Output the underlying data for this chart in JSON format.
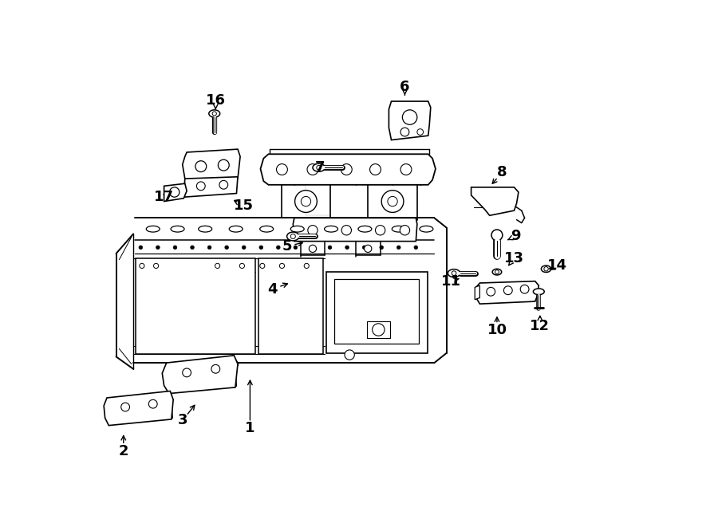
{
  "background_color": "#ffffff",
  "line_color": "#000000",
  "figsize": [
    9.0,
    6.61
  ],
  "dpi": 100,
  "labels": [
    [
      1,
      258,
      595,
      258,
      505
    ],
    [
      2,
      52,
      632,
      52,
      595
    ],
    [
      3,
      148,
      582,
      175,
      548
    ],
    [
      4,
      295,
      368,
      330,
      355
    ],
    [
      5,
      318,
      298,
      355,
      290
    ],
    [
      6,
      510,
      38,
      510,
      62
    ],
    [
      7,
      372,
      170,
      400,
      170
    ],
    [
      8,
      668,
      178,
      645,
      205
    ],
    [
      9,
      690,
      282,
      668,
      292
    ],
    [
      10,
      660,
      435,
      660,
      402
    ],
    [
      11,
      585,
      355,
      608,
      348
    ],
    [
      12,
      730,
      428,
      730,
      400
    ],
    [
      13,
      688,
      318,
      672,
      338
    ],
    [
      14,
      758,
      330,
      740,
      340
    ],
    [
      15,
      248,
      232,
      222,
      218
    ],
    [
      16,
      202,
      60,
      202,
      82
    ],
    [
      17,
      118,
      218,
      130,
      205
    ]
  ]
}
